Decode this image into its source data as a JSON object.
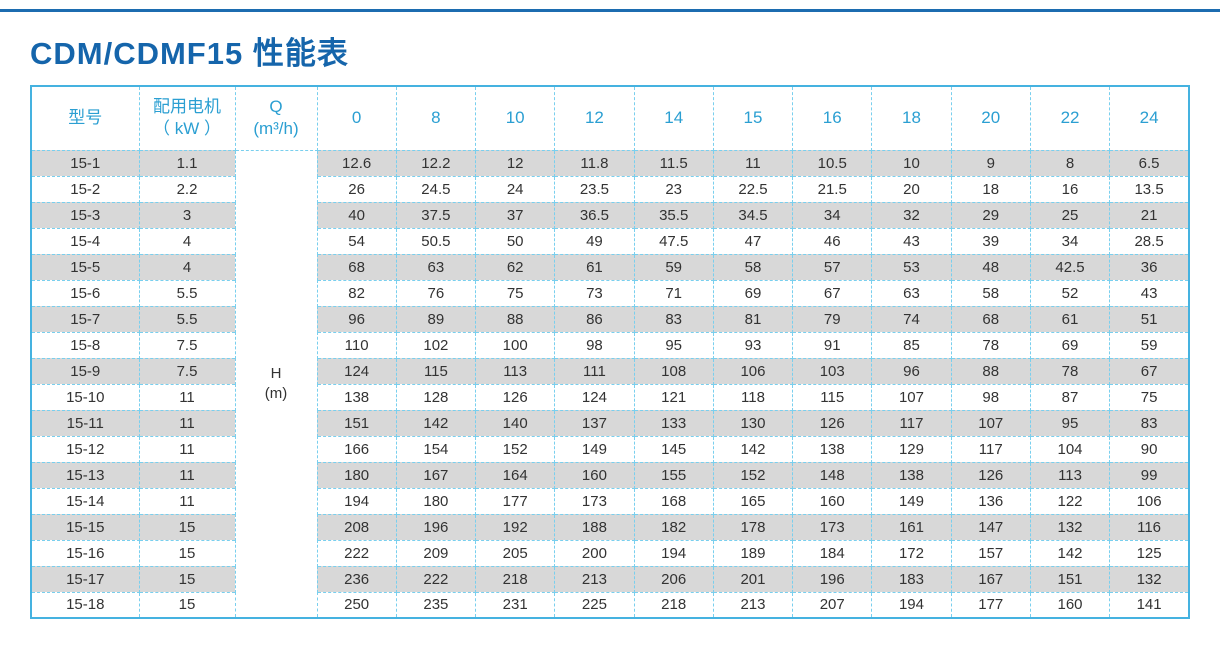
{
  "page": {
    "title": "CDM/CDMF15 性能表"
  },
  "table": {
    "headers": {
      "model": "型号",
      "motor_line1": "配用电机",
      "motor_line2": "（ kW ）",
      "q_line1": "Q",
      "q_line2": "(m³/h)",
      "flow_values": [
        "0",
        "8",
        "10",
        "12",
        "14",
        "15",
        "16",
        "18",
        "20",
        "22",
        "24"
      ]
    },
    "h_label_line1": "H",
    "h_label_line2": "(m)",
    "rows": [
      {
        "model": "15-1",
        "kw": "1.1",
        "values": [
          "12.6",
          "12.2",
          "12",
          "11.8",
          "11.5",
          "11",
          "10.5",
          "10",
          "9",
          "8",
          "6.5"
        ]
      },
      {
        "model": "15-2",
        "kw": "2.2",
        "values": [
          "26",
          "24.5",
          "24",
          "23.5",
          "23",
          "22.5",
          "21.5",
          "20",
          "18",
          "16",
          "13.5"
        ]
      },
      {
        "model": "15-3",
        "kw": "3",
        "values": [
          "40",
          "37.5",
          "37",
          "36.5",
          "35.5",
          "34.5",
          "34",
          "32",
          "29",
          "25",
          "21"
        ]
      },
      {
        "model": "15-4",
        "kw": "4",
        "values": [
          "54",
          "50.5",
          "50",
          "49",
          "47.5",
          "47",
          "46",
          "43",
          "39",
          "34",
          "28.5"
        ]
      },
      {
        "model": "15-5",
        "kw": "4",
        "values": [
          "68",
          "63",
          "62",
          "61",
          "59",
          "58",
          "57",
          "53",
          "48",
          "42.5",
          "36"
        ]
      },
      {
        "model": "15-6",
        "kw": "5.5",
        "values": [
          "82",
          "76",
          "75",
          "73",
          "71",
          "69",
          "67",
          "63",
          "58",
          "52",
          "43"
        ]
      },
      {
        "model": "15-7",
        "kw": "5.5",
        "values": [
          "96",
          "89",
          "88",
          "86",
          "83",
          "81",
          "79",
          "74",
          "68",
          "61",
          "51"
        ]
      },
      {
        "model": "15-8",
        "kw": "7.5",
        "values": [
          "110",
          "102",
          "100",
          "98",
          "95",
          "93",
          "91",
          "85",
          "78",
          "69",
          "59"
        ]
      },
      {
        "model": "15-9",
        "kw": "7.5",
        "values": [
          "124",
          "115",
          "113",
          "111",
          "108",
          "106",
          "103",
          "96",
          "88",
          "78",
          "67"
        ]
      },
      {
        "model": "15-10",
        "kw": "11",
        "values": [
          "138",
          "128",
          "126",
          "124",
          "121",
          "118",
          "115",
          "107",
          "98",
          "87",
          "75"
        ]
      },
      {
        "model": "15-11",
        "kw": "11",
        "values": [
          "151",
          "142",
          "140",
          "137",
          "133",
          "130",
          "126",
          "117",
          "107",
          "95",
          "83"
        ]
      },
      {
        "model": "15-12",
        "kw": "11",
        "values": [
          "166",
          "154",
          "152",
          "149",
          "145",
          "142",
          "138",
          "129",
          "117",
          "104",
          "90"
        ]
      },
      {
        "model": "15-13",
        "kw": "11",
        "values": [
          "180",
          "167",
          "164",
          "160",
          "155",
          "152",
          "148",
          "138",
          "126",
          "113",
          "99"
        ]
      },
      {
        "model": "15-14",
        "kw": "11",
        "values": [
          "194",
          "180",
          "177",
          "173",
          "168",
          "165",
          "160",
          "149",
          "136",
          "122",
          "106"
        ]
      },
      {
        "model": "15-15",
        "kw": "15",
        "values": [
          "208",
          "196",
          "192",
          "188",
          "182",
          "178",
          "173",
          "161",
          "147",
          "132",
          "116"
        ]
      },
      {
        "model": "15-16",
        "kw": "15",
        "values": [
          "222",
          "209",
          "205",
          "200",
          "194",
          "189",
          "184",
          "172",
          "157",
          "142",
          "125"
        ]
      },
      {
        "model": "15-17",
        "kw": "15",
        "values": [
          "236",
          "222",
          "218",
          "213",
          "206",
          "201",
          "196",
          "183",
          "167",
          "151",
          "132"
        ]
      },
      {
        "model": "15-18",
        "kw": "15",
        "values": [
          "250",
          "235",
          "231",
          "225",
          "218",
          "213",
          "207",
          "194",
          "177",
          "160",
          "141"
        ]
      }
    ]
  },
  "colors": {
    "title_blue": "#1565ab",
    "header_cyan": "#2b9fd2",
    "stripe_gray": "#d8d8d8",
    "border_dashed_cyan": "#79cfee",
    "border_outer": "#45b2e0"
  }
}
